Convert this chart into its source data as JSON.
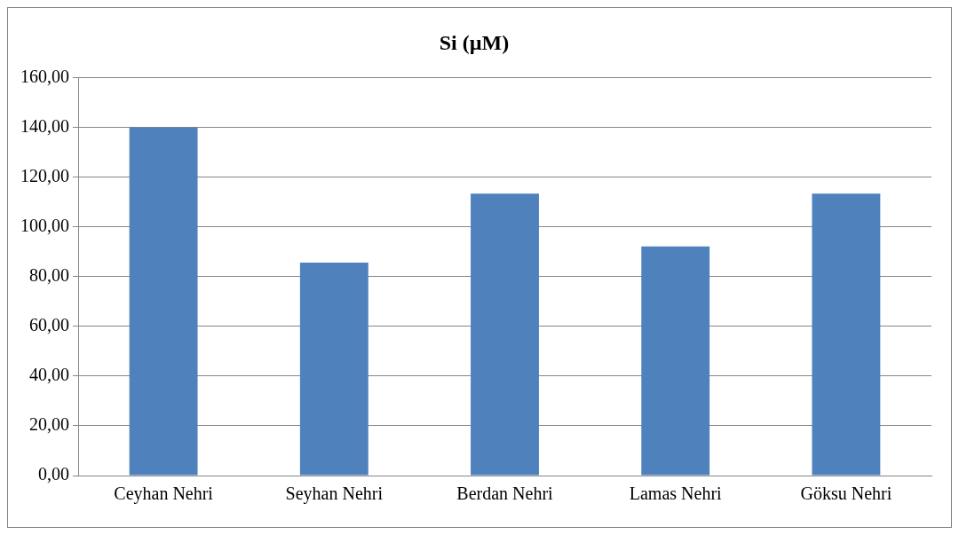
{
  "chart_data": {
    "type": "bar",
    "title": "Si (µM)",
    "categories": [
      "Ceyhan Nehri",
      "Seyhan Nehri",
      "Berdan Nehri",
      "Lamas Nehri",
      "Göksu Nehri"
    ],
    "values": [
      140,
      85.7,
      113.4,
      92.2,
      113.4
    ],
    "color": "#4f81bd",
    "ylim": [
      0,
      160
    ],
    "yticks": [
      {
        "value": 0,
        "label": "0,00"
      },
      {
        "value": 20,
        "label": "20,00"
      },
      {
        "value": 40,
        "label": "40,00"
      },
      {
        "value": 60,
        "label": "60,00"
      },
      {
        "value": 80,
        "label": "80,00"
      },
      {
        "value": 100,
        "label": "100,00"
      },
      {
        "value": 120,
        "label": "120,00"
      },
      {
        "value": 140,
        "label": "140,00"
      },
      {
        "value": 160,
        "label": "160,00"
      }
    ],
    "grid": "y",
    "legend": false
  }
}
